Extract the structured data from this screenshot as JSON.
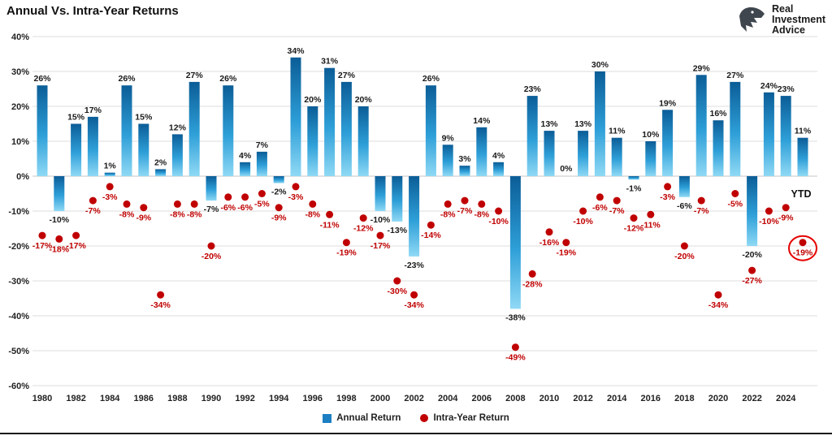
{
  "logo": {
    "line1": "Real",
    "line2": "Investment",
    "line3": "Advice"
  },
  "annotations": {
    "ytd": "YTD"
  },
  "colors": {
    "bar_top": "#0b5d97",
    "bar_mid": "#2e9fd8",
    "bar_bottom": "#8fd9f5",
    "dot": "#c00000",
    "label": "#1a1a1a",
    "red_label": "#c00000",
    "grid": "#dcdcdc",
    "grid_zero": "#c4c4c4",
    "circle": "#e60000",
    "legend_blue": "#1c7fc2"
  },
  "chart_data": {
    "type": "bar",
    "title": "Annual Vs. Intra-Year Returns",
    "xlabel": "",
    "ylabel": "",
    "ylim": [
      -60,
      40
    ],
    "y_ticks": [
      40,
      30,
      20,
      10,
      0,
      -10,
      -20,
      -30,
      -40,
      -50,
      -60
    ],
    "grid": "horizontal",
    "legend_position": "bottom",
    "categories": [
      1980,
      1981,
      1982,
      1983,
      1984,
      1985,
      1986,
      1987,
      1988,
      1989,
      1990,
      1991,
      1992,
      1993,
      1994,
      1995,
      1996,
      1997,
      1998,
      1999,
      2000,
      2001,
      2002,
      2003,
      2004,
      2005,
      2006,
      2007,
      2008,
      2009,
      2010,
      2011,
      2012,
      2013,
      2014,
      2015,
      2016,
      2017,
      2018,
      2019,
      2020,
      2021,
      2022,
      2023,
      2024,
      2025
    ],
    "x_tick_labels": [
      "1980",
      "1982",
      "1984",
      "1986",
      "1988",
      "1990",
      "1992",
      "1994",
      "1996",
      "1998",
      "2000",
      "2002",
      "2004",
      "2006",
      "2008",
      "2010",
      "2012",
      "2014",
      "2016",
      "2018",
      "2020",
      "2022",
      "2024"
    ],
    "series": [
      {
        "name": "Annual Return",
        "type": "bar",
        "values": [
          26,
          -10,
          15,
          17,
          1,
          26,
          15,
          2,
          12,
          27,
          -7,
          26,
          4,
          7,
          -2,
          34,
          20,
          31,
          27,
          20,
          -10,
          -13,
          -23,
          26,
          9,
          3,
          14,
          4,
          -38,
          23,
          13,
          0,
          13,
          30,
          11,
          -1,
          10,
          19,
          -6,
          29,
          16,
          27,
          -20,
          24,
          23,
          11
        ]
      },
      {
        "name": "Intra-Year Return",
        "type": "scatter",
        "values": [
          -17,
          -18,
          -17,
          -7,
          -3,
          -8,
          -9,
          -34,
          -8,
          -8,
          -20,
          -6,
          -6,
          -5,
          -9,
          -3,
          -8,
          -11,
          -19,
          -12,
          -17,
          -30,
          -34,
          -14,
          -8,
          -7,
          -8,
          -10,
          -49,
          -28,
          -16,
          -19,
          -10,
          -6,
          -7,
          -12,
          -11,
          -3,
          -20,
          -7,
          -34,
          -5,
          -27,
          -10,
          -9,
          -19
        ]
      }
    ],
    "highlight": {
      "year": 2025,
      "note": "YTD",
      "circled_value": -19
    }
  }
}
